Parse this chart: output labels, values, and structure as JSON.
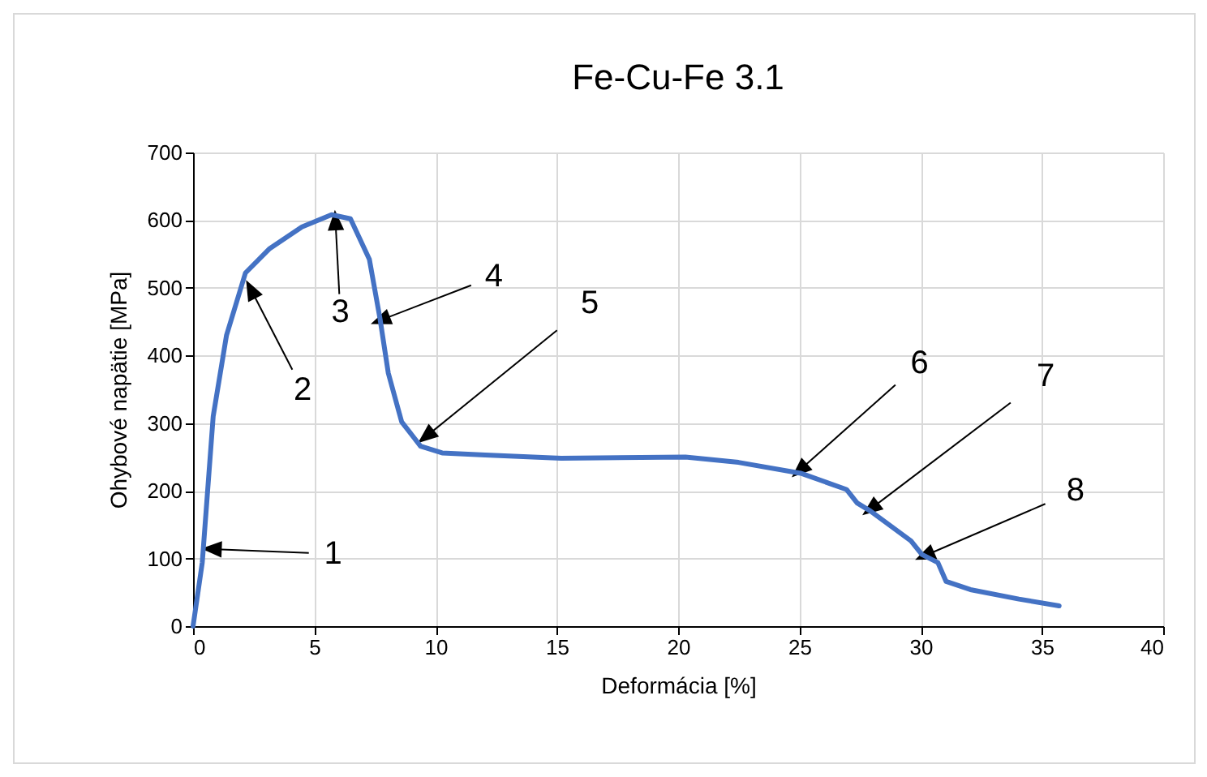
{
  "chart_data": {
    "type": "line",
    "title": "Fe-Cu-Fe 3.1",
    "xlabel": "Deformácia [%]",
    "ylabel": "Ohybové napätie [MPa]",
    "x": [
      0,
      0.38,
      0.83,
      1.38,
      2.16,
      3.16,
      4.49,
      5.71,
      6.49,
      7.27,
      7.71,
      8.05,
      8.6,
      9.38,
      10.27,
      12.05,
      15.18,
      20.3,
      22.49,
      25.05,
      26.94,
      27.38,
      27.93,
      29.6,
      30.05,
      30.71,
      31.05,
      32.05,
      34.05,
      35.71
    ],
    "series": [
      {
        "color": "#4472c4",
        "values": [
          0,
          94,
          310,
          430,
          522,
          558,
          590,
          608,
          602,
          542,
          454,
          374,
          302,
          266,
          256,
          253,
          248,
          250,
          242,
          226,
          202,
          182,
          170,
          126,
          106,
          94,
          66,
          54,
          40,
          30
        ]
      }
    ],
    "xlim": [
      0,
      40
    ],
    "xticks": [
      0,
      5,
      10,
      15,
      20,
      25,
      30,
      35,
      40
    ],
    "ylim": [
      0,
      700
    ],
    "yticks": [
      0,
      100,
      200,
      300,
      400,
      500,
      600,
      700
    ],
    "grid": true,
    "line_style": "solid",
    "marker": "none",
    "annotations": [
      {
        "text": "1",
        "x": 0.76,
        "y": 114
      },
      {
        "text": "2",
        "x": 2.38,
        "y": 498
      },
      {
        "text": "3",
        "x": 5.87,
        "y": 600
      },
      {
        "text": "4",
        "x": 7.72,
        "y": 452
      },
      {
        "text": "5",
        "x": 9.6,
        "y": 280
      },
      {
        "text": "6",
        "x": 25,
        "y": 230
      },
      {
        "text": "7",
        "x": 27.93,
        "y": 173
      },
      {
        "text": "8",
        "x": 30.16,
        "y": 104
      }
    ]
  }
}
